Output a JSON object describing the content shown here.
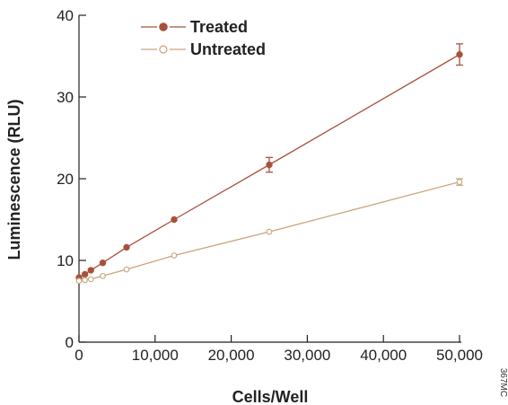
{
  "chart_data": {
    "type": "line",
    "xlabel": "Cells/Well",
    "ylabel": "Luminescence (RLU)",
    "xlim": [
      0,
      50000
    ],
    "ylim": [
      0,
      40
    ],
    "x_ticks": [
      0,
      10000,
      20000,
      30000,
      40000,
      50000
    ],
    "x_tick_labels": [
      "0",
      "10,000",
      "20,000",
      "30,000",
      "40,000",
      "50,000"
    ],
    "y_ticks": [
      0,
      10,
      20,
      30,
      40
    ],
    "y_tick_labels": [
      "0",
      "10",
      "20",
      "30",
      "40"
    ],
    "grid": false,
    "legend_position": "top-left",
    "series": [
      {
        "name": "Treated",
        "color": "#a8523c",
        "marker": "filled-circle",
        "points": [
          {
            "x": 0,
            "y": 7.9
          },
          {
            "x": 780,
            "y": 8.3
          },
          {
            "x": 1560,
            "y": 8.8
          },
          {
            "x": 3125,
            "y": 9.7
          },
          {
            "x": 6250,
            "y": 11.6
          },
          {
            "x": 12500,
            "y": 15.0
          },
          {
            "x": 25000,
            "y": 21.7,
            "err": 0.9
          },
          {
            "x": 50000,
            "y": 35.2,
            "err": 1.3
          }
        ]
      },
      {
        "name": "Untreated",
        "color": "#c9a57a",
        "marker": "open-circle",
        "points": [
          {
            "x": 0,
            "y": 7.5
          },
          {
            "x": 780,
            "y": 7.6
          },
          {
            "x": 1560,
            "y": 7.7
          },
          {
            "x": 3125,
            "y": 8.1
          },
          {
            "x": 6250,
            "y": 8.9
          },
          {
            "x": 12500,
            "y": 10.6
          },
          {
            "x": 25000,
            "y": 13.5
          },
          {
            "x": 50000,
            "y": 19.6,
            "err": 0.4
          }
        ]
      }
    ],
    "code": "367MC"
  }
}
